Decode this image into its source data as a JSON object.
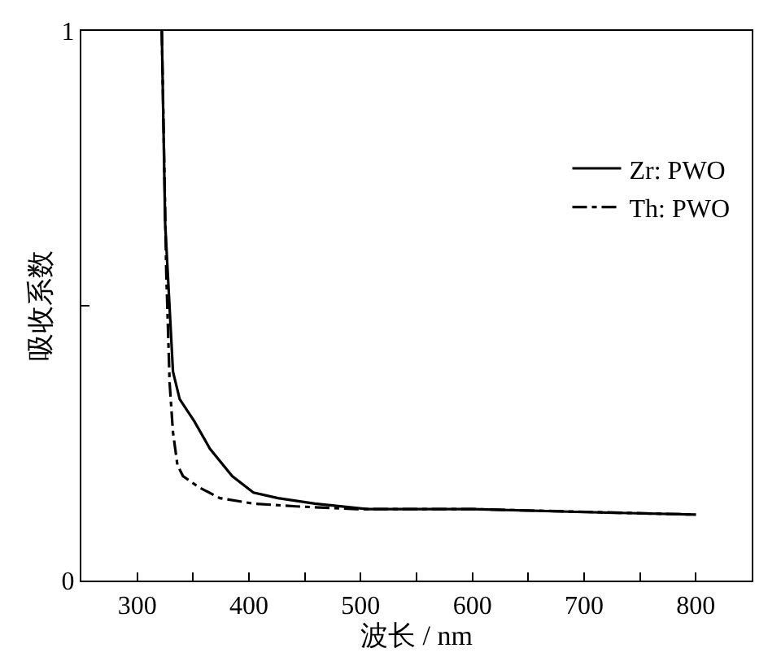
{
  "chart_data": {
    "type": "line",
    "xlabel": "波长 / nm",
    "ylabel": "吸收系数",
    "xlim": [
      250,
      850
    ],
    "ylim": [
      0,
      1
    ],
    "xticks": [
      300,
      {
        "value": 350,
        "label": null
      },
      400,
      {
        "value": 450,
        "label": null
      },
      500,
      {
        "value": 550,
        "label": null
      },
      600,
      {
        "value": 650,
        "label": null
      },
      700,
      {
        "value": 750,
        "label": null
      },
      800
    ],
    "yticks": [
      0,
      {
        "value": 0.5,
        "label": null
      },
      1
    ],
    "grid": false,
    "legend": "top right",
    "marker": "none",
    "series": [
      {
        "name": "Zr: PWO",
        "color": "#000000",
        "line_style": "solid",
        "x": [
          322,
          325,
          332,
          338,
          351,
          365,
          385,
          404,
          426,
          459,
          506,
          600,
          693,
          800
        ],
        "values": [
          1,
          0.65,
          0.38,
          0.33,
          0.29,
          0.24,
          0.19,
          0.16,
          0.15,
          0.14,
          0.13,
          0.13,
          0.125,
          0.12
        ]
      },
      {
        "name": "Th: PWO",
        "color": "#000000",
        "line_style": "dashdot",
        "x": [
          322,
          326,
          329,
          332,
          336,
          341,
          355,
          374,
          404,
          442,
          496,
          600,
          800
        ],
        "values": [
          1,
          0.56,
          0.36,
          0.27,
          0.21,
          0.19,
          0.17,
          0.15,
          0.14,
          0.135,
          0.13,
          0.13,
          0.12
        ]
      }
    ]
  }
}
